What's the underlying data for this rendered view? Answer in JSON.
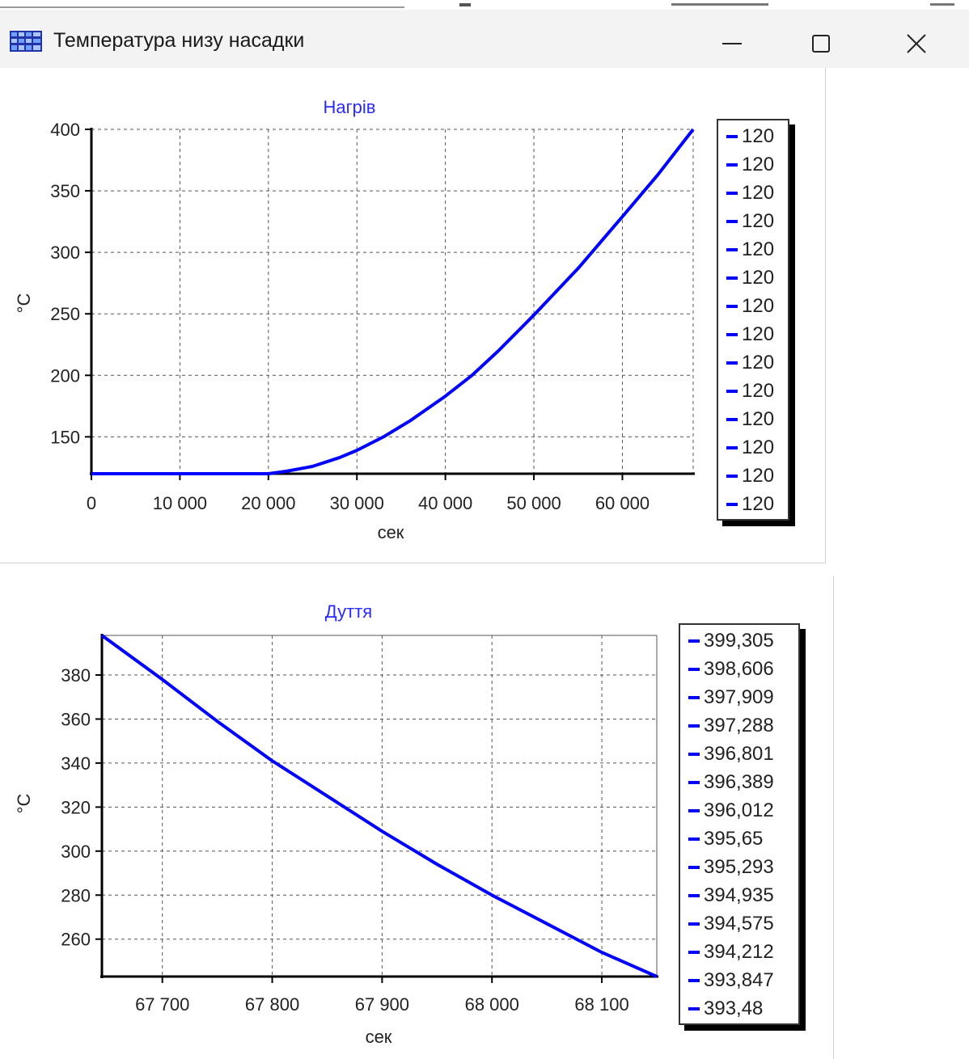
{
  "window": {
    "title": "Температура низу насадки",
    "icon": "app-grid-icon",
    "controls": [
      "minimize-icon",
      "maximize-icon",
      "close-icon"
    ]
  },
  "colors": {
    "series": "#0000ff",
    "title": "#2a2aff",
    "grid": "#555555",
    "axis": "#000000"
  },
  "chart_data": [
    {
      "type": "line",
      "title": "Нагрів",
      "xlabel": "сек",
      "ylabel": "°C",
      "xlim": [
        0,
        68000
      ],
      "ylim": [
        120,
        400
      ],
      "xticks": [
        0,
        10000,
        20000,
        30000,
        40000,
        50000,
        60000
      ],
      "xtick_labels": [
        "0",
        "10 000",
        "20 000",
        "30 000",
        "40 000",
        "50 000",
        "60 000"
      ],
      "yticks": [
        150,
        200,
        250,
        300,
        350,
        400
      ],
      "ytick_labels": [
        "150",
        "200",
        "250",
        "300",
        "350",
        "400"
      ],
      "grid": true,
      "legend_position": "right",
      "legend": [
        "120",
        "120",
        "120",
        "120",
        "120",
        "120",
        "120",
        "120",
        "120",
        "120",
        "120",
        "120",
        "120",
        "120"
      ],
      "series": [
        {
          "x": [
            0,
            18000,
            20000,
            22000,
            25000,
            28000,
            30000,
            33000,
            36000,
            40000,
            43000,
            46000,
            50000,
            55000,
            60000,
            64000,
            68000
          ],
          "values": [
            120,
            120,
            120,
            122,
            126,
            133,
            139,
            150,
            163,
            183,
            200,
            220,
            249,
            287,
            329,
            363,
            400
          ]
        }
      ]
    },
    {
      "type": "line",
      "title": "Дуття",
      "xlabel": "сек",
      "ylabel": "°C",
      "xlim": [
        67645,
        68150
      ],
      "ylim": [
        243,
        398
      ],
      "xticks": [
        67700,
        67800,
        67900,
        68000,
        68100
      ],
      "xtick_labels": [
        "67 700",
        "67 800",
        "67 900",
        "68 000",
        "68 100"
      ],
      "yticks": [
        260,
        280,
        300,
        320,
        340,
        360,
        380
      ],
      "ytick_labels": [
        "260",
        "280",
        "300",
        "320",
        "340",
        "360",
        "380"
      ],
      "grid": true,
      "legend_position": "right",
      "legend": [
        "399,305",
        "398,606",
        "397,909",
        "397,288",
        "396,801",
        "396,389",
        "396,012",
        "395,65",
        "395,293",
        "394,935",
        "394,575",
        "394,212",
        "393,847",
        "393,48"
      ],
      "series": [
        {
          "x": [
            67645,
            67700,
            67750,
            67800,
            67850,
            67900,
            67950,
            68000,
            68050,
            68100,
            68150
          ],
          "values": [
            398,
            378,
            359,
            341,
            325,
            309,
            294,
            280,
            267,
            254,
            243
          ]
        }
      ]
    }
  ]
}
